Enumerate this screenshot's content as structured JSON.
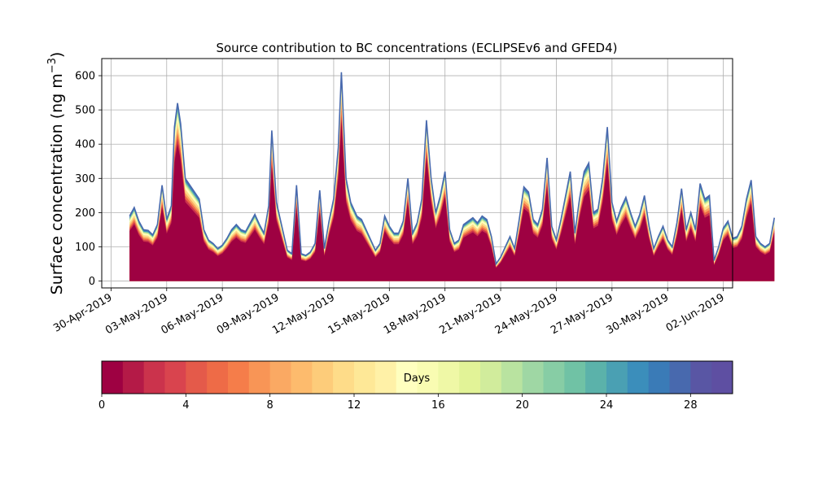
{
  "chart_data": {
    "type": "area",
    "title": "Source contribution to BC concentrations (ECLIPSEv6 and GFED4)",
    "ylabel": "Surface concentration (ng m",
    "ylabel_sup": "−3",
    "ylabel_close": ")",
    "xlabel": "",
    "grid": true,
    "ylim": [
      -20,
      650
    ],
    "yticks": [
      0,
      100,
      200,
      300,
      400,
      500,
      600
    ],
    "xlim": [
      "2019-04-29T12:00",
      "2019-06-02T12:00"
    ],
    "xticks": [
      "30-Apr-2019",
      "03-May-2019",
      "06-May-2019",
      "09-May-2019",
      "12-May-2019",
      "15-May-2019",
      "18-May-2019",
      "21-May-2019",
      "24-May-2019",
      "27-May-2019",
      "30-May-2019",
      "02-Jun-2019"
    ],
    "xtick_dates": [
      "2019-04-30",
      "2019-05-03",
      "2019-05-06",
      "2019-05-09",
      "2019-05-12",
      "2019-05-15",
      "2019-05-18",
      "2019-05-21",
      "2019-05-24",
      "2019-05-27",
      "2019-05-30",
      "2019-06-02"
    ],
    "series_total": {
      "name": "",
      "points": [
        [
          "2019-05-01T00:00",
          190
        ],
        [
          "2019-05-01T06:00",
          215
        ],
        [
          "2019-05-01T12:00",
          175
        ],
        [
          "2019-05-01T18:00",
          150
        ],
        [
          "2019-05-02T00:00",
          148
        ],
        [
          "2019-05-02T06:00",
          135
        ],
        [
          "2019-05-02T12:00",
          165
        ],
        [
          "2019-05-02T18:00",
          280
        ],
        [
          "2019-05-03T00:00",
          180
        ],
        [
          "2019-05-03T06:00",
          220
        ],
        [
          "2019-05-03T10:00",
          450
        ],
        [
          "2019-05-03T14:00",
          520
        ],
        [
          "2019-05-03T18:00",
          460
        ],
        [
          "2019-05-04T00:00",
          300
        ],
        [
          "2019-05-04T06:00",
          280
        ],
        [
          "2019-05-04T12:00",
          260
        ],
        [
          "2019-05-04T18:00",
          240
        ],
        [
          "2019-05-05T00:00",
          150
        ],
        [
          "2019-05-05T06:00",
          120
        ],
        [
          "2019-05-05T12:00",
          110
        ],
        [
          "2019-05-05T18:00",
          95
        ],
        [
          "2019-05-06T00:00",
          105
        ],
        [
          "2019-05-06T06:00",
          125
        ],
        [
          "2019-05-06T12:00",
          150
        ],
        [
          "2019-05-06T18:00",
          165
        ],
        [
          "2019-05-07T00:00",
          150
        ],
        [
          "2019-05-07T06:00",
          145
        ],
        [
          "2019-05-07T12:00",
          170
        ],
        [
          "2019-05-07T18:00",
          195
        ],
        [
          "2019-05-08T00:00",
          165
        ],
        [
          "2019-05-08T06:00",
          140
        ],
        [
          "2019-05-08T12:00",
          220
        ],
        [
          "2019-05-08T16:00",
          440
        ],
        [
          "2019-05-08T22:00",
          230
        ],
        [
          "2019-05-09T06:00",
          150
        ],
        [
          "2019-05-09T12:00",
          90
        ],
        [
          "2019-05-09T18:00",
          80
        ],
        [
          "2019-05-10T00:00",
          280
        ],
        [
          "2019-05-10T06:00",
          80
        ],
        [
          "2019-05-10T12:00",
          75
        ],
        [
          "2019-05-10T18:00",
          85
        ],
        [
          "2019-05-11T00:00",
          110
        ],
        [
          "2019-05-11T06:00",
          265
        ],
        [
          "2019-05-11T12:00",
          95
        ],
        [
          "2019-05-11T18:00",
          175
        ],
        [
          "2019-05-12T00:00",
          240
        ],
        [
          "2019-05-12T06:00",
          390
        ],
        [
          "2019-05-12T10:00",
          610
        ],
        [
          "2019-05-12T16:00",
          300
        ],
        [
          "2019-05-12T22:00",
          230
        ],
        [
          "2019-05-13T06:00",
          190
        ],
        [
          "2019-05-13T12:00",
          180
        ],
        [
          "2019-05-13T18:00",
          150
        ],
        [
          "2019-05-14T00:00",
          120
        ],
        [
          "2019-05-14T06:00",
          90
        ],
        [
          "2019-05-14T12:00",
          110
        ],
        [
          "2019-05-14T18:00",
          190
        ],
        [
          "2019-05-15T00:00",
          160
        ],
        [
          "2019-05-15T06:00",
          140
        ],
        [
          "2019-05-15T12:00",
          140
        ],
        [
          "2019-05-15T18:00",
          175
        ],
        [
          "2019-05-16T00:00",
          300
        ],
        [
          "2019-05-16T06:00",
          140
        ],
        [
          "2019-05-16T12:00",
          170
        ],
        [
          "2019-05-16T18:00",
          240
        ],
        [
          "2019-05-17T00:00",
          470
        ],
        [
          "2019-05-17T06:00",
          300
        ],
        [
          "2019-05-17T12:00",
          200
        ],
        [
          "2019-05-17T18:00",
          250
        ],
        [
          "2019-05-18T00:00",
          320
        ],
        [
          "2019-05-18T06:00",
          150
        ],
        [
          "2019-05-18T12:00",
          110
        ],
        [
          "2019-05-18T18:00",
          120
        ],
        [
          "2019-05-19T00:00",
          165
        ],
        [
          "2019-05-19T06:00",
          175
        ],
        [
          "2019-05-19T12:00",
          185
        ],
        [
          "2019-05-19T18:00",
          170
        ],
        [
          "2019-05-20T00:00",
          190
        ],
        [
          "2019-05-20T06:00",
          180
        ],
        [
          "2019-05-20T12:00",
          130
        ],
        [
          "2019-05-20T18:00",
          50
        ],
        [
          "2019-05-21T00:00",
          70
        ],
        [
          "2019-05-21T06:00",
          100
        ],
        [
          "2019-05-21T12:00",
          130
        ],
        [
          "2019-05-21T18:00",
          95
        ],
        [
          "2019-05-22T00:00",
          180
        ],
        [
          "2019-05-22T06:00",
          275
        ],
        [
          "2019-05-22T12:00",
          260
        ],
        [
          "2019-05-22T18:00",
          180
        ],
        [
          "2019-05-23T00:00",
          165
        ],
        [
          "2019-05-23T06:00",
          210
        ],
        [
          "2019-05-23T12:00",
          360
        ],
        [
          "2019-05-23T18:00",
          160
        ],
        [
          "2019-05-24T00:00",
          120
        ],
        [
          "2019-05-24T06:00",
          180
        ],
        [
          "2019-05-24T12:00",
          250
        ],
        [
          "2019-05-24T18:00",
          320
        ],
        [
          "2019-05-25T00:00",
          140
        ],
        [
          "2019-05-25T06:00",
          240
        ],
        [
          "2019-05-25T12:00",
          320
        ],
        [
          "2019-05-25T18:00",
          345
        ],
        [
          "2019-05-26T00:00",
          200
        ],
        [
          "2019-05-26T06:00",
          210
        ],
        [
          "2019-05-26T12:00",
          300
        ],
        [
          "2019-05-26T18:00",
          450
        ],
        [
          "2019-05-27T00:00",
          230
        ],
        [
          "2019-05-27T06:00",
          175
        ],
        [
          "2019-05-27T12:00",
          215
        ],
        [
          "2019-05-27T18:00",
          245
        ],
        [
          "2019-05-28T00:00",
          200
        ],
        [
          "2019-05-28T06:00",
          160
        ],
        [
          "2019-05-28T12:00",
          195
        ],
        [
          "2019-05-28T18:00",
          250
        ],
        [
          "2019-05-29T00:00",
          160
        ],
        [
          "2019-05-29T06:00",
          95
        ],
        [
          "2019-05-29T12:00",
          130
        ],
        [
          "2019-05-29T18:00",
          160
        ],
        [
          "2019-05-30T00:00",
          120
        ],
        [
          "2019-05-30T06:00",
          100
        ],
        [
          "2019-05-30T12:00",
          170
        ],
        [
          "2019-05-30T18:00",
          270
        ],
        [
          "2019-05-31T00:00",
          150
        ],
        [
          "2019-05-31T06:00",
          200
        ],
        [
          "2019-05-31T12:00",
          150
        ],
        [
          "2019-05-31T18:00",
          285
        ],
        [
          "2019-06-01T00:00",
          240
        ],
        [
          "2019-06-01T06:00",
          250
        ],
        [
          "2019-06-01T12:00",
          60
        ],
        [
          "2019-06-01T18:00",
          100
        ],
        [
          "2019-06-02T00:00",
          155
        ],
        [
          "2019-06-02T06:00",
          175
        ],
        [
          "2019-06-02T12:00",
          125
        ],
        [
          "2019-06-02T18:00",
          130
        ],
        [
          "2019-06-03T00:00",
          160
        ],
        [
          "2019-06-03T06:00",
          240
        ],
        [
          "2019-06-03T12:00",
          295
        ],
        [
          "2019-06-03T18:00",
          130
        ],
        [
          "2019-06-04T00:00",
          110
        ],
        [
          "2019-06-04T06:00",
          100
        ],
        [
          "2019-06-04T12:00",
          110
        ],
        [
          "2019-06-04T18:00",
          185
        ]
      ]
    },
    "colorbar": {
      "label": "Days",
      "min": 0,
      "max": 30,
      "ticks": [
        0,
        4,
        8,
        12,
        16,
        20,
        24,
        28
      ],
      "tick_labels": [
        "0",
        "4",
        "8",
        "12",
        "16",
        "20",
        "24",
        "28"
      ],
      "colors": [
        "#9e0142",
        "#b41a47",
        "#cb334c",
        "#d9444e",
        "#e45a4a",
        "#ee6b47",
        "#f57d4a",
        "#f89556",
        "#faa963",
        "#fdbb6d",
        "#fdcc7a",
        "#fedc89",
        "#fee897",
        "#fff1a7",
        "#ffffbf",
        "#f9fcb2",
        "#eff8a6",
        "#e2f397",
        "#d1ec9c",
        "#b9e3a0",
        "#9fd7a4",
        "#87cda5",
        "#70c2a5",
        "#5bb2aa",
        "#4aa0b3",
        "#3b8ebb",
        "#3a7bb7",
        "#4869ae",
        "#5956a4",
        "#5e4fa2"
      ]
    }
  }
}
